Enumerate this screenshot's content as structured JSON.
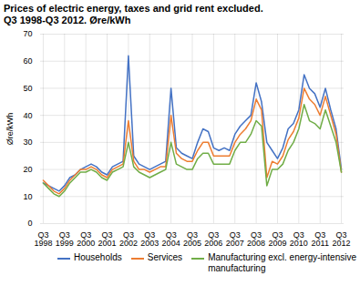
{
  "chart_data": {
    "type": "line",
    "title": "Prices of electric energy, taxes and grid rent excluded.",
    "subtitle": "Q3 1998-Q3 2012. Øre/kWh",
    "ylabel": "Øre/kWh",
    "categories": [
      "Q3\n1998",
      null,
      null,
      null,
      "Q3\n1999",
      null,
      null,
      null,
      "Q3\n2000",
      null,
      null,
      null,
      "Q3\n2001",
      null,
      null,
      null,
      "Q3\n2002",
      null,
      null,
      null,
      "Q3\n2003",
      null,
      null,
      null,
      "Q3\n2004",
      null,
      null,
      null,
      "Q3\n2005",
      null,
      null,
      null,
      "Q3\n2006",
      null,
      null,
      null,
      "Q3\n2007",
      null,
      null,
      null,
      "Q3\n2008",
      null,
      null,
      null,
      "Q3\n2009",
      null,
      null,
      null,
      "Q3\n2010",
      null,
      null,
      null,
      "Q3\n2011",
      null,
      null,
      null,
      "Q3\n2012"
    ],
    "series": [
      {
        "name": "Households",
        "color": "#4472c4",
        "values": [
          15,
          14,
          13,
          12,
          14,
          17,
          18,
          20,
          21,
          22,
          21,
          19,
          18,
          21,
          22,
          23,
          62,
          25,
          22,
          21,
          20,
          21,
          22,
          23,
          50,
          28,
          26,
          25,
          24,
          30,
          35,
          34,
          28,
          27,
          28,
          27,
          33,
          36,
          38,
          40,
          52,
          45,
          30,
          27,
          24,
          28,
          35,
          37,
          42,
          55,
          50,
          48,
          43,
          50,
          42,
          35,
          20
        ]
      },
      {
        "name": "Services",
        "color": "#ed7d31",
        "values": [
          16,
          14,
          12,
          11,
          13,
          16,
          18,
          20,
          20,
          21,
          20,
          18,
          17,
          20,
          21,
          22,
          38,
          23,
          20,
          20,
          19,
          20,
          21,
          21,
          40,
          26,
          24,
          23,
          23,
          27,
          30,
          30,
          25,
          25,
          25,
          25,
          30,
          33,
          35,
          38,
          46,
          42,
          17,
          23,
          22,
          25,
          31,
          34,
          39,
          50,
          46,
          44,
          40,
          47,
          40,
          33,
          19
        ]
      },
      {
        "name": "Manufacturing excl. energy-intensive\nmanufacturing",
        "color": "#70ad47",
        "values": [
          15,
          13,
          11,
          10,
          12,
          15,
          17,
          19,
          19,
          20,
          19,
          17,
          16,
          19,
          20,
          21,
          30,
          21,
          19,
          18,
          17,
          18,
          19,
          20,
          30,
          22,
          21,
          20,
          20,
          24,
          26,
          26,
          22,
          22,
          22,
          22,
          27,
          30,
          30,
          33,
          38,
          36,
          14,
          20,
          20,
          22,
          27,
          30,
          35,
          44,
          38,
          37,
          35,
          42,
          36,
          30,
          19
        ]
      }
    ],
    "ylim": [
      0,
      70
    ],
    "yticks": [
      0,
      10,
      20,
      30,
      40,
      50,
      60,
      70
    ],
    "grid": true,
    "legend": "lower right"
  }
}
